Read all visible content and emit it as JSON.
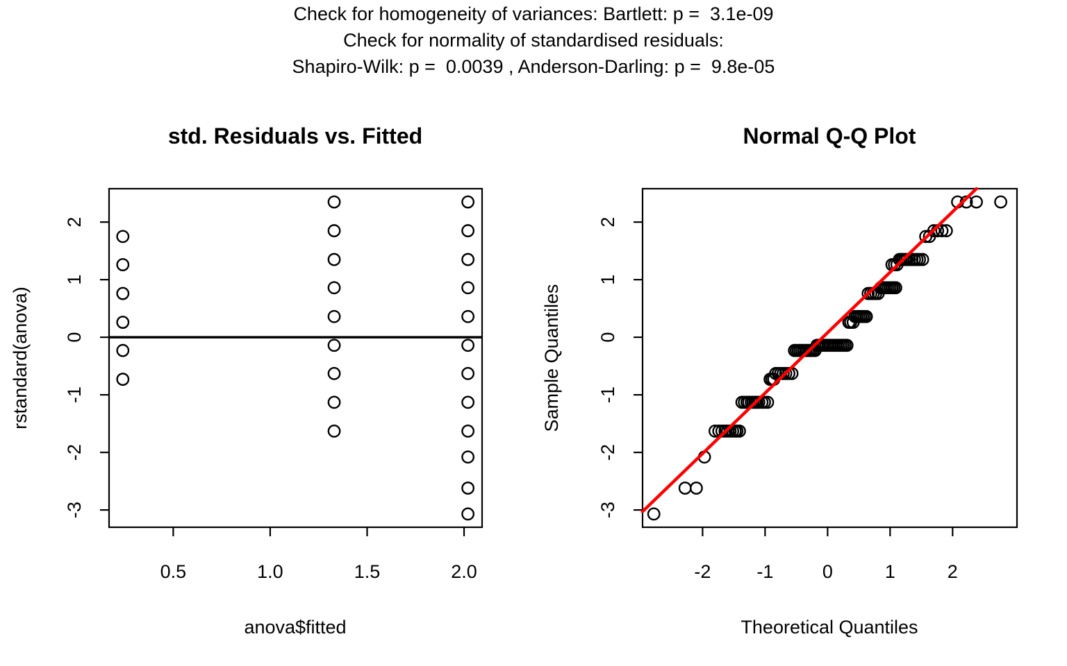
{
  "header": {
    "line1": "Check for homogeneity of variances: Bartlett: p =  3.1e-09",
    "line2": "Check for normality of standardised residuals:",
    "line3": "Shapiro-Wilk: p =  0.0039 , Anderson-Darling: p =  9.8e-05"
  },
  "colors": {
    "background": "#FFFFFF",
    "foreground": "#000000",
    "refline": "#FF0000"
  },
  "chart_data": [
    {
      "type": "scatter",
      "title": "std. Residuals vs. Fitted",
      "xlabel": "anova$fitted",
      "ylabel": "rstandard(anova)",
      "xlim": [
        0.169,
        2.093
      ],
      "ylim": [
        -3.3,
        2.58
      ],
      "xticks": [
        0.5,
        1.0,
        1.5,
        2.0
      ],
      "xtick_labels": [
        "0.5",
        "1.0",
        "1.5",
        "2.0"
      ],
      "yticks": [
        -3,
        -2,
        -1,
        0,
        1,
        2
      ],
      "ytick_labels": [
        "-3",
        "-2",
        "-1",
        "0",
        "1",
        "2"
      ],
      "grid": false,
      "hline": 0,
      "marker": "open-circle",
      "points": [
        [
          0.24,
          1.75
        ],
        [
          0.24,
          1.26
        ],
        [
          0.24,
          0.76
        ],
        [
          0.24,
          0.26
        ],
        [
          0.24,
          -0.23
        ],
        [
          0.24,
          -0.73
        ],
        [
          1.33,
          2.35
        ],
        [
          1.33,
          1.85
        ],
        [
          1.33,
          1.35
        ],
        [
          1.33,
          0.86
        ],
        [
          1.33,
          0.36
        ],
        [
          1.33,
          -0.14
        ],
        [
          1.33,
          -0.63
        ],
        [
          1.33,
          -1.13
        ],
        [
          1.33,
          -1.63
        ],
        [
          2.02,
          2.35
        ],
        [
          2.02,
          1.85
        ],
        [
          2.02,
          1.35
        ],
        [
          2.02,
          0.86
        ],
        [
          2.02,
          0.36
        ],
        [
          2.02,
          -0.14
        ],
        [
          2.02,
          -0.63
        ],
        [
          2.02,
          -1.13
        ],
        [
          2.02,
          -1.63
        ],
        [
          2.02,
          -2.08
        ],
        [
          2.02,
          -2.62
        ],
        [
          2.02,
          -3.07
        ]
      ]
    },
    {
      "type": "scatter",
      "title": "Normal Q-Q Plot",
      "xlabel": "Theoretical Quantiles",
      "ylabel": "Sample Quantiles",
      "xlim": [
        -2.96,
        3.03
      ],
      "ylim": [
        -3.3,
        2.58
      ],
      "xticks": [
        -2,
        -1,
        0,
        1,
        2
      ],
      "xtick_labels": [
        "-2",
        "-1",
        "0",
        "1",
        "2"
      ],
      "yticks": [
        -3,
        -2,
        -1,
        0,
        1,
        2
      ],
      "ytick_labels": [
        "-3",
        "-2",
        "-1",
        "0",
        "1",
        "2"
      ],
      "grid": false,
      "refline": {
        "slope": 1.05,
        "intercept": 0.08
      },
      "marker": "open-circle",
      "points": [
        [
          -2.78,
          -3.07
        ],
        [
          -2.28,
          -2.62
        ],
        [
          -2.1,
          -2.62
        ],
        [
          -1.97,
          -2.08
        ],
        [
          -1.8,
          -1.63
        ],
        [
          -1.74,
          -1.63
        ],
        [
          -1.69,
          -1.63
        ],
        [
          -1.64,
          -1.63
        ],
        [
          -1.6,
          -1.63
        ],
        [
          -1.56,
          -1.63
        ],
        [
          -1.52,
          -1.63
        ],
        [
          -1.48,
          -1.63
        ],
        [
          -1.45,
          -1.63
        ],
        [
          -1.41,
          -1.63
        ],
        [
          -1.37,
          -1.13
        ],
        [
          -1.33,
          -1.13
        ],
        [
          -1.29,
          -1.13
        ],
        [
          -1.26,
          -1.13
        ],
        [
          -1.22,
          -1.13
        ],
        [
          -1.19,
          -1.13
        ],
        [
          -1.16,
          -1.13
        ],
        [
          -1.13,
          -1.13
        ],
        [
          -1.1,
          -1.13
        ],
        [
          -1.05,
          -1.13
        ],
        [
          -1.01,
          -1.13
        ],
        [
          -0.96,
          -1.13
        ],
        [
          -0.92,
          -0.73
        ],
        [
          -0.89,
          -0.73
        ],
        [
          -0.86,
          -0.73
        ],
        [
          -0.83,
          -0.63
        ],
        [
          -0.79,
          -0.63
        ],
        [
          -0.75,
          -0.63
        ],
        [
          -0.71,
          -0.63
        ],
        [
          -0.67,
          -0.63
        ],
        [
          -0.62,
          -0.63
        ],
        [
          -0.57,
          -0.63
        ],
        [
          -0.53,
          -0.23
        ],
        [
          -0.5,
          -0.23
        ],
        [
          -0.47,
          -0.23
        ],
        [
          -0.44,
          -0.23
        ],
        [
          -0.41,
          -0.23
        ],
        [
          -0.38,
          -0.23
        ],
        [
          -0.35,
          -0.23
        ],
        [
          -0.32,
          -0.23
        ],
        [
          -0.29,
          -0.23
        ],
        [
          -0.26,
          -0.23
        ],
        [
          -0.23,
          -0.23
        ],
        [
          -0.2,
          -0.23
        ],
        [
          -0.17,
          -0.14
        ],
        [
          -0.14,
          -0.14
        ],
        [
          -0.11,
          -0.14
        ],
        [
          -0.08,
          -0.14
        ],
        [
          -0.05,
          -0.14
        ],
        [
          -0.02,
          -0.14
        ],
        [
          0.01,
          -0.14
        ],
        [
          0.04,
          -0.14
        ],
        [
          0.07,
          -0.14
        ],
        [
          0.1,
          -0.14
        ],
        [
          0.13,
          -0.14
        ],
        [
          0.16,
          -0.14
        ],
        [
          0.19,
          -0.14
        ],
        [
          0.22,
          -0.14
        ],
        [
          0.25,
          -0.14
        ],
        [
          0.28,
          -0.14
        ],
        [
          0.31,
          -0.14
        ],
        [
          0.34,
          0.26
        ],
        [
          0.37,
          0.26
        ],
        [
          0.41,
          0.26
        ],
        [
          0.44,
          0.36
        ],
        [
          0.47,
          0.36
        ],
        [
          0.5,
          0.36
        ],
        [
          0.53,
          0.36
        ],
        [
          0.56,
          0.36
        ],
        [
          0.59,
          0.36
        ],
        [
          0.62,
          0.36
        ],
        [
          0.65,
          0.76
        ],
        [
          0.69,
          0.76
        ],
        [
          0.73,
          0.76
        ],
        [
          0.77,
          0.76
        ],
        [
          0.81,
          0.76
        ],
        [
          0.85,
          0.86
        ],
        [
          0.88,
          0.86
        ],
        [
          0.91,
          0.86
        ],
        [
          0.94,
          0.86
        ],
        [
          0.97,
          0.86
        ],
        [
          1.0,
          0.86
        ],
        [
          1.03,
          0.86
        ],
        [
          1.06,
          0.86
        ],
        [
          1.09,
          0.86
        ],
        [
          1.03,
          1.26
        ],
        [
          1.07,
          1.26
        ],
        [
          1.11,
          1.26
        ],
        [
          1.15,
          1.35
        ],
        [
          1.18,
          1.35
        ],
        [
          1.21,
          1.35
        ],
        [
          1.24,
          1.35
        ],
        [
          1.27,
          1.35
        ],
        [
          1.31,
          1.35
        ],
        [
          1.35,
          1.35
        ],
        [
          1.39,
          1.35
        ],
        [
          1.43,
          1.35
        ],
        [
          1.47,
          1.35
        ],
        [
          1.52,
          1.35
        ],
        [
          1.57,
          1.75
        ],
        [
          1.63,
          1.75
        ],
        [
          1.7,
          1.85
        ],
        [
          1.76,
          1.85
        ],
        [
          1.83,
          1.85
        ],
        [
          1.9,
          1.85
        ],
        [
          2.08,
          2.35
        ],
        [
          2.22,
          2.35
        ],
        [
          2.38,
          2.35
        ],
        [
          2.77,
          2.35
        ]
      ]
    }
  ]
}
